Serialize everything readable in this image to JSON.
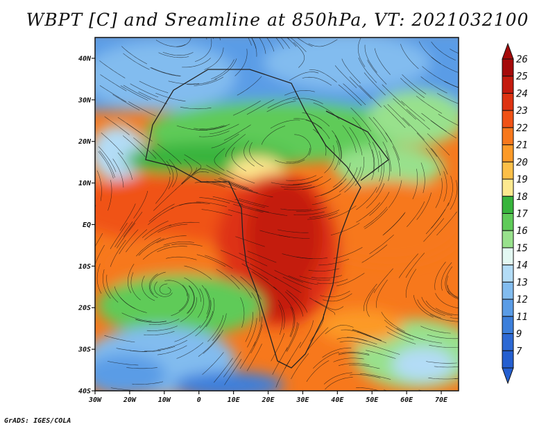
{
  "title": "WBPT [C] and Sreamline at 850hPa, VT: 2021032100",
  "footer": "GrADS: IGES/COLA",
  "map": {
    "lon_range": [
      -30,
      75
    ],
    "lat_range": [
      -40,
      45
    ],
    "x_ticks": [
      {
        "value": -30,
        "label": "30W"
      },
      {
        "value": -20,
        "label": "20W"
      },
      {
        "value": -10,
        "label": "10W"
      },
      {
        "value": 0,
        "label": "0"
      },
      {
        "value": 10,
        "label": "10E"
      },
      {
        "value": 20,
        "label": "20E"
      },
      {
        "value": 30,
        "label": "30E"
      },
      {
        "value": 40,
        "label": "40E"
      },
      {
        "value": 50,
        "label": "50E"
      },
      {
        "value": 60,
        "label": "60E"
      },
      {
        "value": 70,
        "label": "70E"
      }
    ],
    "y_ticks": [
      {
        "value": 40,
        "label": "40N"
      },
      {
        "value": 30,
        "label": "30N"
      },
      {
        "value": 20,
        "label": "20N"
      },
      {
        "value": 10,
        "label": "10N"
      },
      {
        "value": 0,
        "label": "EQ"
      },
      {
        "value": -10,
        "label": "10S"
      },
      {
        "value": -20,
        "label": "20S"
      },
      {
        "value": -30,
        "label": "30S"
      },
      {
        "value": -40,
        "label": "40S"
      }
    ]
  },
  "colorbar": {
    "levels": [
      {
        "label": "26",
        "color": "#a50a0a"
      },
      {
        "label": "25",
        "color": "#c41a0e"
      },
      {
        "label": "24",
        "color": "#de3312"
      },
      {
        "label": "23",
        "color": "#f05216"
      },
      {
        "label": "22",
        "color": "#f7781c"
      },
      {
        "label": "21",
        "color": "#fc9a28"
      },
      {
        "label": "20",
        "color": "#fcbf48"
      },
      {
        "label": "19",
        "color": "#fde98f"
      },
      {
        "label": "18",
        "color": "#37b43c"
      },
      {
        "label": "17",
        "color": "#5fcb59"
      },
      {
        "label": "16",
        "color": "#98e18c"
      },
      {
        "label": "15",
        "color": "#e3f8f2"
      },
      {
        "label": "14",
        "color": "#b3dcf6"
      },
      {
        "label": "13",
        "color": "#82bcef"
      },
      {
        "label": "12",
        "color": "#5a9ce6"
      },
      {
        "label": "11",
        "color": "#3c7fdb"
      },
      {
        "label": "9",
        "color": "#2d69d4"
      },
      {
        "label": "7",
        "color": "#245fd0"
      }
    ]
  }
}
